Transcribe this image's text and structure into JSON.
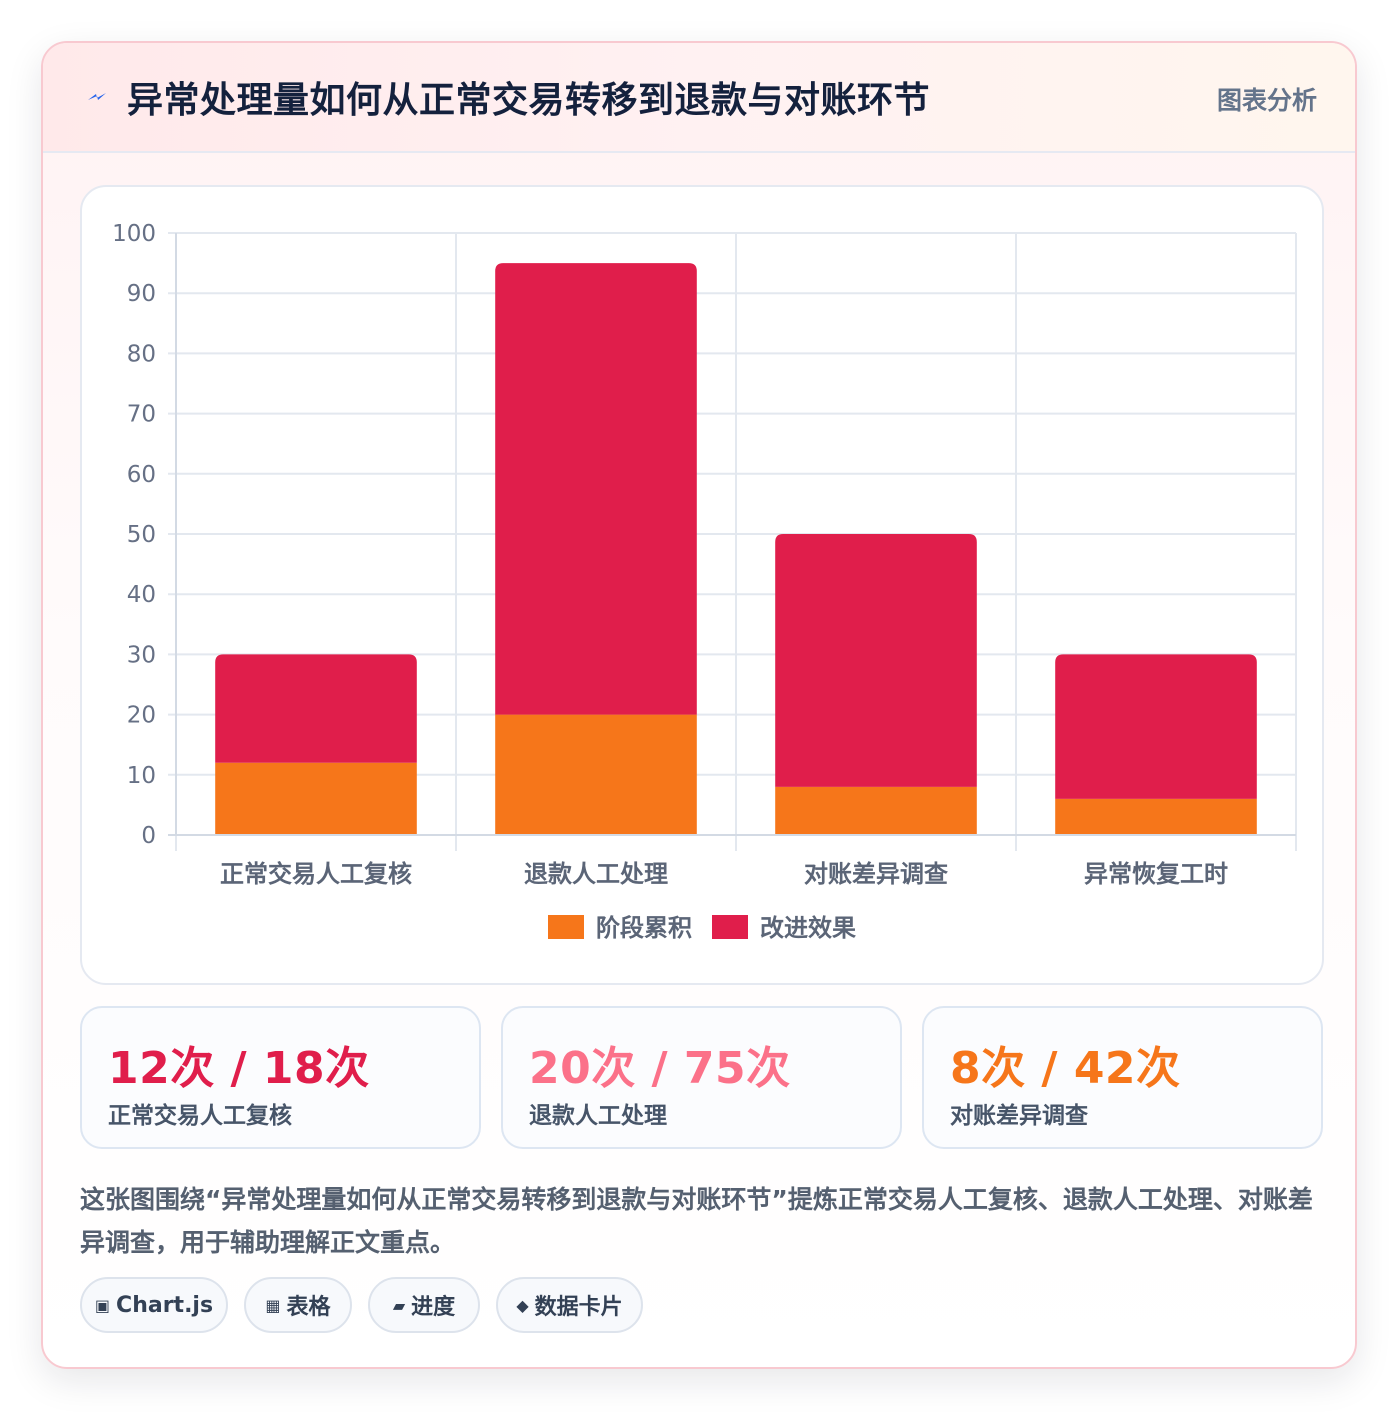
{
  "header": {
    "title": "异常处理量如何从正常交易转移到退款与对账环节",
    "badge": "图表分析",
    "icon": "lightning-bolt-icon"
  },
  "chart_data": {
    "type": "bar",
    "stacked": true,
    "categories": [
      "正常交易人工复核",
      "退款人工处理",
      "对账差异调查",
      "异常恢复工时"
    ],
    "series": [
      {
        "name": "阶段累积",
        "values": [
          12,
          20,
          8,
          6
        ],
        "color": "#f6761a"
      },
      {
        "name": "改进效果",
        "values": [
          18,
          75,
          42,
          24
        ],
        "color": "#e01e4b"
      }
    ],
    "ylim": [
      0,
      100
    ],
    "yticks": [
      "0",
      "10",
      "20",
      "30",
      "40",
      "50",
      "60",
      "70",
      "80",
      "90",
      "100"
    ],
    "grid": true,
    "legend_position": "bottom"
  },
  "stats": [
    {
      "value": "12次 / 18次",
      "label": "正常交易人工复核",
      "color": "#e01e4b"
    },
    {
      "value": "20次 / 75次",
      "label": "退款人工处理",
      "color": "#fb7189"
    },
    {
      "value": "8次 / 42次",
      "label": "对账差异调查",
      "color": "#f6761a"
    }
  ],
  "summary": "这张图围绕“异常处理量如何从正常交易转移到退款与对账环节”提炼正常交易人工复核、退款人工处理、对账差异调查，用于辅助理解正文重点。",
  "tags": [
    {
      "icon": "▣",
      "label": "Chart.js"
    },
    {
      "icon": "▦",
      "label": "表格"
    },
    {
      "icon": "▰",
      "label": "进度"
    },
    {
      "icon": "◆",
      "label": "数据卡片"
    }
  ]
}
